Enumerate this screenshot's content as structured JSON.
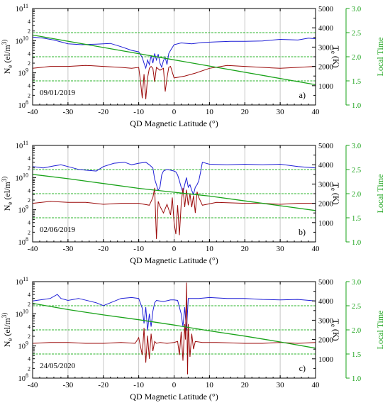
{
  "colors": {
    "ne": "#1f1fd6",
    "te": "#9b0b0b",
    "local_time": "#1aa31a",
    "grid_vertical": "#c8c8c8",
    "grid_horizontal": "#2bb52b"
  },
  "chart_data": [
    {
      "type": "line",
      "date": "09/01/2019",
      "panel_label": "a)",
      "xlabel": "QD Magnetic Latitude (°)",
      "ylabel_left": "N e (el/m 3)",
      "ylabel_right": "T e (K)",
      "ylabel_far_right": "Local Time",
      "x_ticks": [
        "-40",
        "-30",
        "-20",
        "-10",
        "0",
        "10",
        "20",
        "30",
        "40"
      ],
      "y_left_ticks": [
        {
          "base": "10",
          "exp": "8"
        },
        {
          "base": "10",
          "exp": "9"
        },
        {
          "base": "10",
          "exp": "10"
        },
        {
          "base": "10",
          "exp": "11"
        }
      ],
      "y_left_minor_labels": [
        "2",
        "4",
        "2",
        "4",
        "2",
        "4"
      ],
      "y_right_ticks": [
        "1000",
        "2000",
        "3000",
        "4000",
        "5000"
      ],
      "y_far_right_ticks": [
        "1.0",
        "1.5",
        "2.0",
        "2.5",
        "3.0"
      ],
      "xlim": [
        -40,
        40
      ],
      "ylim_left": [
        100000000.0,
        100000000000.0
      ],
      "ylim_right": [
        0,
        5000
      ],
      "ylim_far_right": [
        1.0,
        3.0
      ],
      "grid_x": [
        -30,
        -20,
        -10,
        0,
        10,
        20,
        30
      ],
      "grid_local_time": [
        1.5,
        2.0,
        2.5
      ],
      "series": [
        {
          "axis": "left",
          "x": [
            -40,
            -37,
            -34,
            -30,
            -26,
            -22,
            -18,
            -15,
            -12,
            -10,
            -9,
            -8.5,
            -8,
            -7.5,
            -7,
            -6.5,
            -6,
            -5.5,
            -5,
            -4.5,
            -4,
            -3.5,
            -3,
            -2.5,
            -2,
            -1.5,
            -1,
            0,
            2,
            5,
            8,
            12,
            16,
            20,
            25,
            30,
            35,
            38,
            40
          ],
          "y": [
            13000000000.0,
            12000000000.0,
            10500000000.0,
            8000000000.0,
            7500000000.0,
            7800000000.0,
            8200000000.0,
            6500000000.0,
            5000000000.0,
            4500000000.0,
            3000000000.0,
            2000000000.0,
            1400000000.0,
            2500000000.0,
            1800000000.0,
            3500000000.0,
            2000000000.0,
            4000000000.0,
            2500000000.0,
            3800000000.0,
            2000000000.0,
            1500000000.0,
            2400000000.0,
            3000000000.0,
            1800000000.0,
            4000000000.0,
            5000000000.0,
            7500000000.0,
            8500000000.0,
            8000000000.0,
            8800000000.0,
            9200000000.0,
            9500000000.0,
            9500000000.0,
            9800000000.0,
            11000000000.0,
            10500000000.0,
            12000000000.0,
            11500000000.0
          ]
        },
        {
          "axis": "right",
          "x": [
            -40,
            -35,
            -30,
            -25,
            -20,
            -15,
            -12,
            -10,
            -9.5,
            -9,
            -8.5,
            -8,
            -7.5,
            -7,
            -6.5,
            -6,
            -5.5,
            -5,
            -4,
            -3,
            -2.5,
            -2,
            -1.5,
            -1,
            0,
            3,
            6,
            10,
            15,
            20,
            25,
            30,
            35,
            40
          ],
          "y": [
            1900,
            2000,
            2000,
            2050,
            2000,
            1950,
            1900,
            1950,
            1250,
            350,
            1600,
            300,
            1400,
            1900,
            2000,
            1900,
            1200,
            1950,
            1800,
            1900,
            700,
            1400,
            1950,
            2000,
            1400,
            1500,
            1650,
            1900,
            2050,
            2000,
            1950,
            1900,
            1950,
            2000
          ]
        },
        {
          "axis": "far_right",
          "x": [
            -40,
            40
          ],
          "y": [
            2.45,
            1.42
          ]
        }
      ]
    },
    {
      "type": "line",
      "date": "02/06/2019",
      "panel_label": "b)",
      "xlabel": "QD Magnetic Latitude (°)",
      "ylabel_left": "N e (el/m 3)",
      "ylabel_right": "T e (K)",
      "ylabel_far_right": "Local Time",
      "x_ticks": [
        "-40",
        "-30",
        "-20",
        "-10",
        "0",
        "10",
        "20",
        "30",
        "40"
      ],
      "y_left_ticks": [
        {
          "base": "10",
          "exp": "8"
        },
        {
          "base": "10",
          "exp": "9"
        },
        {
          "base": "10",
          "exp": "10"
        },
        {
          "base": "10",
          "exp": "11"
        }
      ],
      "y_left_minor_labels": [
        "2",
        "4",
        "2",
        "4",
        "2",
        "4"
      ],
      "y_right_ticks": [
        "1000",
        "2000",
        "3000",
        "4000",
        "5000"
      ],
      "y_far_right_ticks": [
        "1.0",
        "1.5",
        "2.0",
        "2.5",
        "3.0"
      ],
      "xlim": [
        -40,
        40
      ],
      "ylim_left": [
        100000000.0,
        100000000000.0
      ],
      "ylim_right": [
        0,
        5000
      ],
      "ylim_far_right": [
        1.0,
        3.0
      ],
      "grid_x": [
        -30,
        -20,
        -10,
        0,
        10,
        20,
        30
      ],
      "grid_local_time": [
        1.5,
        2.0,
        2.5
      ],
      "series": [
        {
          "axis": "left",
          "x": [
            -40,
            -37,
            -34,
            -32,
            -30,
            -27,
            -25,
            -22,
            -20,
            -17,
            -14,
            -12,
            -10,
            -8,
            -7,
            -6,
            -5.5,
            -5,
            -4.5,
            -4,
            -3.5,
            -3,
            -2,
            -1,
            0,
            0.5,
            1,
            1.5,
            2,
            2.5,
            3,
            3.5,
            4,
            4.5,
            5,
            5.5,
            6,
            6.5,
            7,
            7.5,
            8,
            10,
            15,
            20,
            25,
            30,
            35,
            40
          ],
          "y": [
            22000000000.0,
            20000000000.0,
            23000000000.0,
            25000000000.0,
            22000000000.0,
            18000000000.0,
            17000000000.0,
            16000000000.0,
            22000000000.0,
            28000000000.0,
            30000000000.0,
            25000000000.0,
            28000000000.0,
            30000000000.0,
            25000000000.0,
            20000000000.0,
            9000000000.0,
            6000000000.0,
            4000000000.0,
            5000000000.0,
            12000000000.0,
            16000000000.0,
            18000000000.0,
            17000000000.0,
            16000000000.0,
            15000000000.0,
            12000000000.0,
            8000000000.0,
            5000000000.0,
            3500000000.0,
            6000000000.0,
            10000000000.0,
            5000000000.0,
            6000000000.0,
            4000000000.0,
            3000000000.0,
            5000000000.0,
            6000000000.0,
            8000000000.0,
            15000000000.0,
            30000000000.0,
            26000000000.0,
            25000000000.0,
            26000000000.0,
            25000000000.0,
            26000000000.0,
            22000000000.0,
            20000000000.0
          ]
        },
        {
          "axis": "right",
          "x": [
            -40,
            -35,
            -30,
            -25,
            -20,
            -15,
            -10,
            -7,
            -6,
            -5.5,
            -5,
            -4.5,
            -4,
            -3,
            -2,
            -1,
            -0.5,
            0,
            0.5,
            1,
            1.5,
            2,
            2.5,
            3,
            3.5,
            4,
            4.5,
            5,
            5.5,
            6,
            6.5,
            7,
            8,
            12,
            20,
            25,
            30,
            35,
            40
          ],
          "y": [
            2000,
            2100,
            2050,
            2050,
            1950,
            2000,
            2000,
            1900,
            2300,
            2800,
            150,
            2100,
            1850,
            1500,
            1950,
            1400,
            2300,
            1000,
            400,
            1900,
            350,
            1950,
            2800,
            1800,
            2700,
            1900,
            2500,
            1800,
            2400,
            1500,
            2600,
            2300,
            1900,
            2050,
            2000,
            2000,
            1950,
            2000,
            2000
          ]
        },
        {
          "axis": "far_right",
          "x": [
            -40,
            -30,
            -20,
            -10,
            0,
            10,
            20,
            30,
            40
          ],
          "y": [
            2.4,
            2.31,
            2.21,
            2.11,
            2.03,
            1.95,
            1.85,
            1.75,
            1.65
          ]
        }
      ]
    },
    {
      "type": "line",
      "date": "24/05/2020",
      "panel_label": "c)",
      "xlabel": "QD Magnetic Latitude (°)",
      "ylabel_left": "N e (el/m 3)",
      "ylabel_right": "T e (K)",
      "ylabel_far_right": "Local Time",
      "x_ticks": [
        "-40",
        "-30",
        "-20",
        "-10",
        "0",
        "10",
        "20",
        "30",
        "40"
      ],
      "y_left_ticks": [
        {
          "base": "10",
          "exp": "8"
        },
        {
          "base": "10",
          "exp": "9"
        },
        {
          "base": "10",
          "exp": "10"
        },
        {
          "base": "10",
          "exp": "11"
        }
      ],
      "y_left_minor_labels": [
        "2",
        "4",
        "2",
        "4",
        "2",
        "4"
      ],
      "y_right_ticks": [
        "1000",
        "2000",
        "3000",
        "4000",
        "5000"
      ],
      "y_far_right_ticks": [
        "1.0",
        "1.5",
        "2.0",
        "2.5",
        "3.0"
      ],
      "xlim": [
        -40,
        40
      ],
      "ylim_left": [
        100000000.0,
        100000000000.0
      ],
      "ylim_right": [
        0,
        5000
      ],
      "ylim_far_right": [
        1.0,
        3.0
      ],
      "grid_x": [
        -30,
        -20,
        -10,
        0,
        10,
        20,
        30
      ],
      "grid_local_time": [
        1.5,
        2.0,
        2.5
      ],
      "series": [
        {
          "axis": "left",
          "x": [
            -40,
            -37,
            -35,
            -33,
            -32,
            -30,
            -27,
            -24,
            -22,
            -20,
            -18,
            -15,
            -12,
            -10,
            -9,
            -8.5,
            -8,
            -7.5,
            -7,
            -6.5,
            -6,
            -5.5,
            -5,
            -3,
            -1,
            0,
            1,
            2,
            2.5,
            3,
            3.5,
            4,
            5,
            7,
            10,
            15,
            20,
            25,
            30,
            35,
            40
          ],
          "y": [
            25000000000.0,
            28000000000.0,
            30000000000.0,
            40000000000.0,
            30000000000.0,
            26000000000.0,
            30000000000.0,
            25000000000.0,
            22000000000.0,
            18000000000.0,
            22000000000.0,
            30000000000.0,
            32000000000.0,
            30000000000.0,
            15000000000.0,
            5000000000.0,
            16000000000.0,
            3000000000.0,
            10000000000.0,
            4000000000.0,
            12000000000.0,
            22000000000.0,
            26000000000.0,
            24000000000.0,
            27000000000.0,
            27000000000.0,
            26000000000.0,
            10000000000.0,
            4000000000.0,
            16000000000.0,
            3000000000.0,
            30000000000.0,
            30000000000.0,
            30000000000.0,
            32000000000.0,
            30000000000.0,
            30000000000.0,
            28000000000.0,
            27000000000.0,
            28000000000.0,
            25000000000.0
          ]
        },
        {
          "axis": "right",
          "x": [
            -40,
            -35,
            -30,
            -25,
            -20,
            -15,
            -11,
            -10,
            -9,
            -8.5,
            -8,
            -7.5,
            -7,
            -6.5,
            -6,
            -5.5,
            -5,
            -4,
            -2,
            0,
            1,
            1.5,
            2,
            2.5,
            3,
            3.2,
            3.5,
            3.8,
            4,
            4.5,
            5,
            5.5,
            6,
            8,
            12,
            20,
            25,
            30,
            35,
            40
          ],
          "y": [
            1800,
            1850,
            1850,
            1800,
            1800,
            1850,
            1800,
            2100,
            1200,
            2600,
            800,
            2200,
            1000,
            2300,
            1400,
            1900,
            1800,
            1850,
            1800,
            1850,
            1900,
            1200,
            2400,
            900,
            2800,
            2000,
            4950,
            200,
            2800,
            1100,
            2300,
            1500,
            1900,
            1850,
            1850,
            1800,
            1800,
            1850,
            1800,
            1850
          ]
        },
        {
          "axis": "far_right",
          "x": [
            -40,
            -30,
            -20,
            -10,
            0,
            10,
            20,
            30,
            40
          ],
          "y": [
            2.55,
            2.42,
            2.31,
            2.21,
            2.1,
            1.98,
            1.87,
            1.75,
            1.62
          ]
        }
      ]
    }
  ]
}
